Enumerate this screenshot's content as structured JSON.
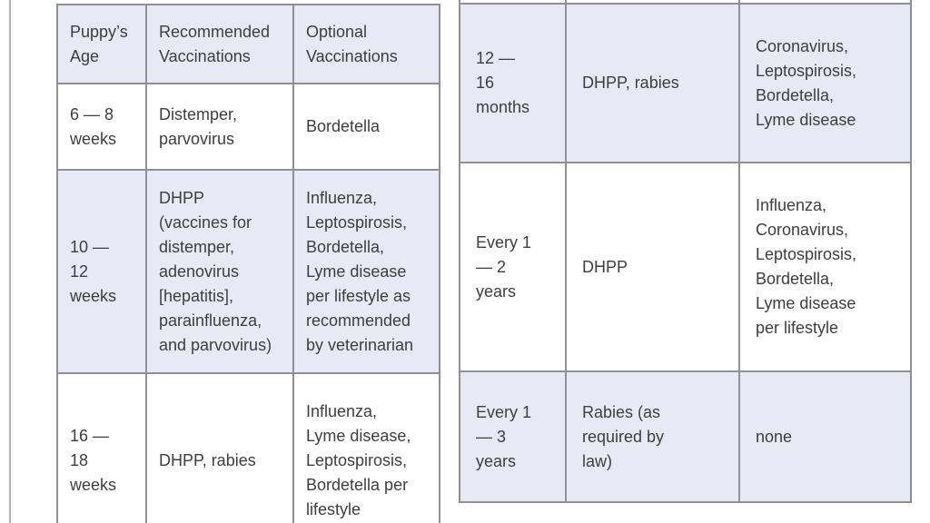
{
  "colors": {
    "row_shade": "#e7eaf4",
    "table_border": "#8f8f95",
    "text": "#3e3e3e",
    "page_background": "#ffffff"
  },
  "left_table": {
    "headers": [
      "Puppy’s\nAge",
      "Recommended\nVaccinations",
      "Optional\nVaccinations"
    ],
    "rows": [
      [
        "6 — 8\nweeks",
        "Distemper,\nparvovirus",
        "Bordetella"
      ],
      [
        "10 —\n12\nweeks",
        "DHPP\n(vaccines for\ndistemper,\nadenovirus\n[hepatitis],\nparainfluenza,\nand parvovirus)",
        "Influenza,\nLeptospirosis,\nBordetella,\nLyme disease\nper lifestyle as\nrecommended\nby veterinarian"
      ],
      [
        "16 —\n18\nweeks",
        "DHPP, rabies",
        "Influenza,\nLyme disease,\nLeptospirosis,\nBordetella per\nlifestyle"
      ]
    ]
  },
  "right_table": {
    "rows": [
      [
        "12 —\n16\nmonths",
        "DHPP, rabies",
        "Coronavirus,\nLeptospirosis,\nBordetella,\nLyme disease"
      ],
      [
        "Every 1\n— 2\nyears",
        "DHPP",
        "Influenza,\nCoronavirus,\nLeptospirosis,\nBordetella,\nLyme disease\nper lifestyle"
      ],
      [
        "Every 1\n— 3\nyears",
        "Rabies (as\nrequired by\nlaw)",
        "none"
      ]
    ]
  }
}
